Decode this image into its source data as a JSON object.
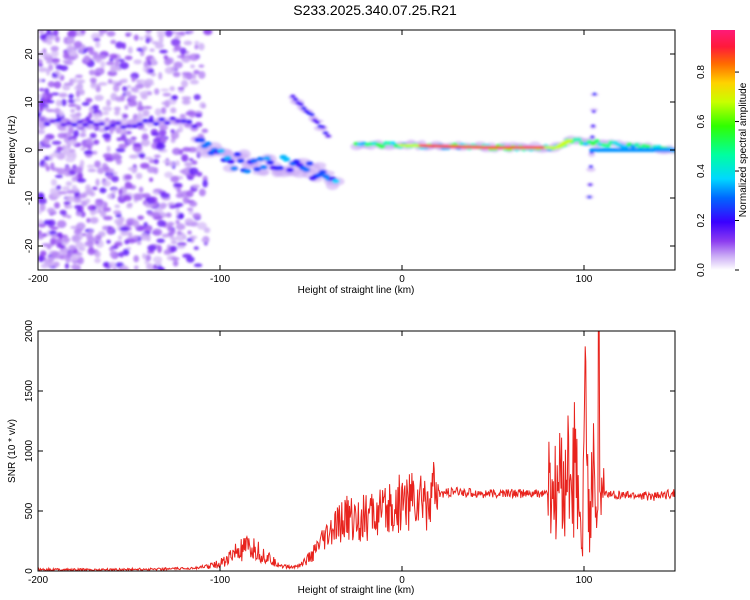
{
  "chart_data": [
    {
      "type": "heatmap",
      "title": "S233.2025.340.07.25.R21",
      "xlabel": "Height of straight line (km)",
      "ylabel": "Frequency (Hz)",
      "xlim": [
        -200,
        150
      ],
      "ylim": [
        -25,
        25
      ],
      "xticks": [
        -200,
        -100,
        0,
        100
      ],
      "yticks": [
        -20,
        -10,
        0,
        10,
        20
      ],
      "colorbar": {
        "label": "Normalized spectral amplitude",
        "range": [
          0.0,
          0.97
        ],
        "ticks": [
          0.0,
          0.2,
          0.4,
          0.6,
          0.8
        ]
      },
      "features": [
        {
          "name": "noise region",
          "x_range": [
            -200,
            -115
          ],
          "freq_range": [
            -25,
            25
          ],
          "amplitude": 0.05
        },
        {
          "name": "tone line left",
          "x": [
            -195,
            -160,
            -125,
            -112
          ],
          "freq": [
            6,
            5,
            6,
            5
          ]
        },
        {
          "name": "descending trace",
          "x": [
            -112,
            -95,
            -80,
            -60,
            -45,
            -35
          ],
          "freq": [
            1,
            -2,
            -3,
            -3,
            -5,
            -7
          ]
        },
        {
          "name": "upper branch",
          "x": [
            -60,
            -52,
            -45,
            -40
          ],
          "freq": [
            11,
            8,
            5,
            3
          ]
        },
        {
          "name": "carrier line",
          "x": [
            -25,
            0,
            50,
            85,
            92,
            150
          ],
          "freq": [
            1,
            1,
            0.5,
            0.5,
            2,
            0
          ]
        },
        {
          "name": "spike near 105",
          "x": [
            103,
            106
          ],
          "freq": [
            -10,
            13
          ]
        }
      ]
    },
    {
      "type": "line",
      "xlabel": "Height of straight line (km)",
      "ylabel": "SNR (10 * v/v)",
      "xlim": [
        -200,
        150
      ],
      "ylim": [
        0,
        2000
      ],
      "xticks": [
        -200,
        -100,
        0,
        100
      ],
      "yticks": [
        0,
        500,
        1000,
        1500,
        2000
      ],
      "series": [
        {
          "name": "SNR",
          "color": "#e8231d",
          "x": [
            -200,
            -180,
            -160,
            -140,
            -120,
            -110,
            -100,
            -95,
            -90,
            -85,
            -80,
            -75,
            -70,
            -65,
            -60,
            -55,
            -50,
            -45,
            -40,
            -35,
            -30,
            -25,
            -20,
            -15,
            -10,
            -5,
            0,
            5,
            10,
            15,
            20,
            25,
            30,
            40,
            50,
            60,
            70,
            80,
            85,
            88,
            90,
            93,
            95,
            97,
            99,
            101,
            103,
            105,
            107,
            108,
            109,
            110,
            115,
            120,
            130,
            140,
            150
          ],
          "y": [
            15,
            10,
            12,
            15,
            20,
            30,
            60,
            110,
            160,
            180,
            170,
            120,
            70,
            40,
            30,
            60,
            120,
            220,
            300,
            380,
            450,
            430,
            440,
            480,
            470,
            520,
            580,
            600,
            580,
            620,
            640,
            650,
            660,
            650,
            640,
            650,
            640,
            650,
            630,
            750,
            850,
            700,
            900,
            500,
            150,
            1500,
            250,
            1200,
            300,
            2000,
            500,
            630,
            640,
            630,
            630,
            620,
            650
          ]
        }
      ]
    }
  ]
}
